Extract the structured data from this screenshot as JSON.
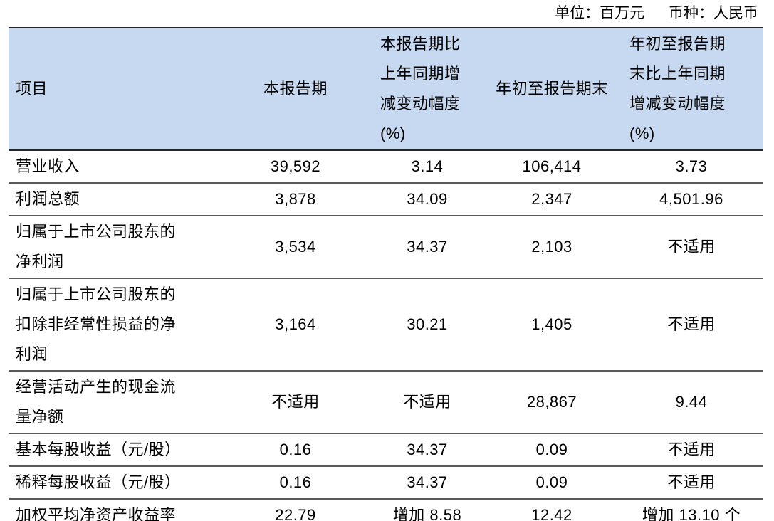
{
  "caption": {
    "unit": "单位：百万元",
    "currency": "币种：人民币"
  },
  "table": {
    "columns": [
      {
        "key": "item",
        "label": "项目"
      },
      {
        "key": "current_period",
        "label": "本报告期"
      },
      {
        "key": "current_period_change",
        "label": "本报告期比\n上年同期增\n减变动幅度\n(%)"
      },
      {
        "key": "ytd",
        "label": "年初至报告期末"
      },
      {
        "key": "ytd_change",
        "label": "年初至报告期\n末比上年同期\n增减变动幅度\n(%)"
      }
    ],
    "rows": [
      {
        "item": "营业收入",
        "values": [
          "39,592",
          "3.14",
          "106,414",
          "3.73"
        ]
      },
      {
        "item": "利润总额",
        "values": [
          "3,878",
          "34.09",
          "2,347",
          "4,501.96"
        ]
      },
      {
        "item": "归属于上市公司股东的\n净利润",
        "values": [
          "3,534",
          "34.37",
          "2,103",
          "不适用"
        ]
      },
      {
        "item": "归属于上市公司股东的\n扣除非经常性损益的净\n利润",
        "values": [
          "3,164",
          "30.21",
          "1,405",
          "不适用"
        ]
      },
      {
        "item": "经营活动产生的现金流\n量净额",
        "values": [
          "不适用",
          "不适用",
          "28,867",
          "9.44"
        ]
      },
      {
        "item": "基本每股收益（元/股）",
        "values": [
          "0.16",
          "34.37",
          "0.09",
          "不适用"
        ]
      },
      {
        "item": "稀释每股收益（元/股）",
        "values": [
          "0.16",
          "34.37",
          "0.09",
          "不适用"
        ]
      },
      {
        "item": "加权平均净资产收益率",
        "values": [
          "22.79",
          "增加 8.58",
          "12.42",
          "增加 13.10 个"
        ]
      }
    ],
    "colors": {
      "header_bg": "#c6d9f0",
      "dark_border": "#262626",
      "row_border": "#595959",
      "text": "#000000"
    }
  }
}
